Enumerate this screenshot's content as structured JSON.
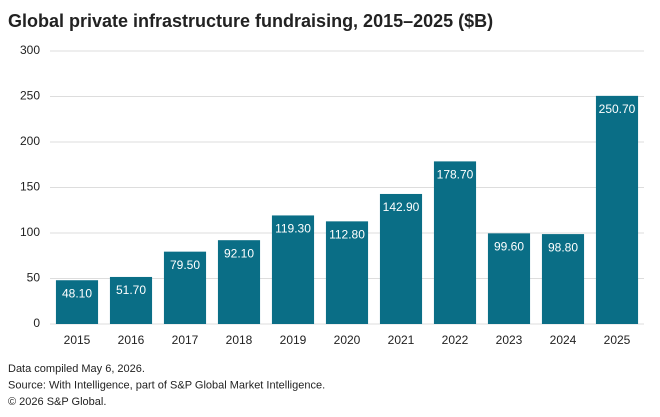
{
  "chart_data": {
    "type": "bar",
    "title": "Global private infrastructure fundraising, 2015–2025 ($B)",
    "categories": [
      "2015",
      "2016",
      "2017",
      "2018",
      "2019",
      "2020",
      "2021",
      "2022",
      "2023",
      "2024",
      "2025"
    ],
    "values": [
      48.1,
      51.7,
      79.5,
      92.1,
      119.3,
      112.8,
      142.9,
      178.7,
      99.6,
      98.8,
      250.7
    ],
    "value_labels": [
      "48.10",
      "51.70",
      "79.50",
      "92.10",
      "119.30",
      "112.80",
      "142.90",
      "178.70",
      "99.60",
      "98.80",
      "250.70"
    ],
    "color": "#0a6e86",
    "ylim": [
      0,
      300
    ],
    "yticks": [
      0,
      50,
      100,
      150,
      200,
      250,
      300
    ],
    "grid": true,
    "notes": [
      "Data compiled May 6, 2026.",
      "Source: With Intelligence, part of S&P Global Market Intelligence.",
      "© 2026 S&P Global."
    ]
  }
}
